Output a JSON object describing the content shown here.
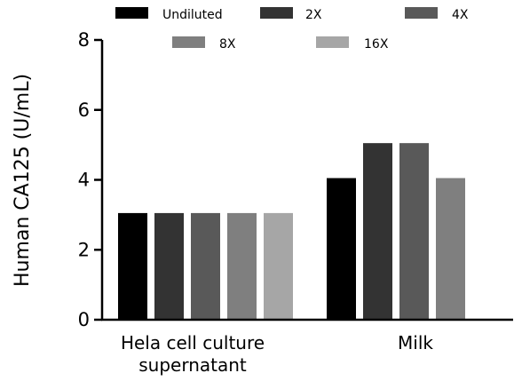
{
  "chart_data": {
    "type": "bar",
    "title": "",
    "xlabel": "",
    "ylabel": "Human CA125 (U/mL)",
    "ylim": [
      0,
      8
    ],
    "yticks": [
      "0",
      "2",
      "4",
      "6",
      "8"
    ],
    "categories": [
      "Hela cell culture supernatant",
      "Milk"
    ],
    "category_lines": [
      [
        "Hela cell culture",
        "supernatant"
      ],
      [
        "Milk"
      ]
    ],
    "grid": false,
    "legend_position": "top",
    "series": [
      {
        "name": "Undiluted",
        "color": "#000000",
        "values": [
          3.05,
          4.05
        ]
      },
      {
        "name": "2X",
        "color": "#333333",
        "values": [
          3.05,
          5.05
        ]
      },
      {
        "name": "4X",
        "color": "#595959",
        "values": [
          3.05,
          5.05
        ]
      },
      {
        "name": "8X",
        "color": "#7f7f7f",
        "values": [
          3.05,
          4.05
        ]
      },
      {
        "name": "16X",
        "color": "#a6a6a6",
        "values": [
          3.05,
          null
        ]
      }
    ]
  }
}
